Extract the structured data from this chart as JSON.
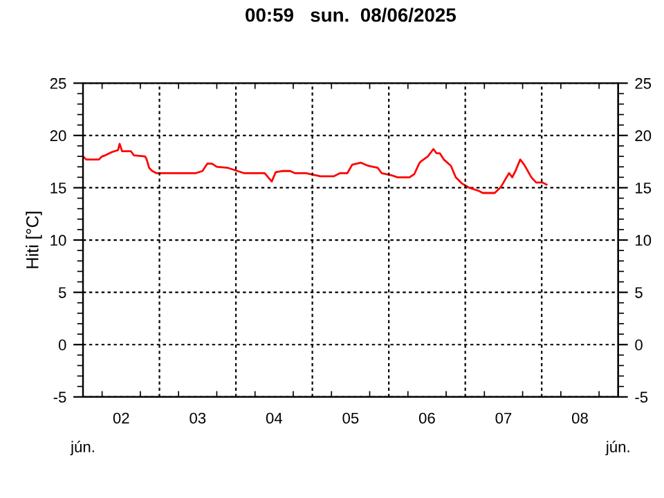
{
  "chart_data": {
    "type": "line",
    "title": "00:59   sun.  08/06/2025",
    "ylabel": "Hiti [°C]",
    "annotations": [
      "jún.",
      "jún."
    ],
    "series": [
      {
        "color": "#ff0000",
        "x": [
          "2025-06-02T00:00",
          "2025-06-02T01:00",
          "2025-06-02T05:00",
          "2025-06-02T06:00",
          "2025-06-02T07:00",
          "2025-06-02T09:00",
          "2025-06-02T11:00",
          "2025-06-02T11:30",
          "2025-06-02T12:15",
          "2025-06-02T15:00",
          "2025-06-02T16:00",
          "2025-06-02T19:30",
          "2025-06-02T20:00",
          "2025-06-02T20:45",
          "2025-06-02T21:45",
          "2025-06-02T23:00",
          "2025-06-03T11:30",
          "2025-06-03T13:30",
          "2025-06-03T15:00",
          "2025-06-03T16:30",
          "2025-06-03T18:00",
          "2025-06-03T21:30",
          "2025-06-03T23:30",
          "2025-06-04T02:30",
          "2025-06-04T09:00",
          "2025-06-04T11:15",
          "2025-06-04T12:30",
          "2025-06-04T14:45",
          "2025-06-04T17:00",
          "2025-06-04T18:30",
          "2025-06-04T22:00",
          "2025-06-04T23:30",
          "2025-06-05T02:30",
          "2025-06-05T06:45",
          "2025-06-05T08:45",
          "2025-06-05T11:00",
          "2025-06-05T12:30",
          "2025-06-05T15:15",
          "2025-06-05T17:30",
          "2025-06-05T20:30",
          "2025-06-05T21:45",
          "2025-06-06T00:45",
          "2025-06-06T02:45",
          "2025-06-06T06:30",
          "2025-06-06T08:00",
          "2025-06-06T09:30",
          "2025-06-06T10:00",
          "2025-06-06T12:15",
          "2025-06-06T14:00",
          "2025-06-06T15:00",
          "2025-06-06T16:00",
          "2025-06-06T17:15",
          "2025-06-06T19:30",
          "2025-06-06T21:00",
          "2025-06-06T23:00",
          "2025-06-07T01:15",
          "2025-06-07T04:15",
          "2025-06-07T05:30",
          "2025-06-07T09:15",
          "2025-06-07T11:15",
          "2025-06-07T12:45",
          "2025-06-07T13:45",
          "2025-06-07T14:45",
          "2025-06-07T15:45",
          "2025-06-07T17:15",
          "2025-06-07T18:30",
          "2025-06-07T20:45",
          "2025-06-07T22:15",
          "2025-06-08T00:15",
          "2025-06-08T01:30"
        ],
        "values": [
          18.0,
          17.7,
          17.7,
          18.0,
          18.1,
          18.4,
          18.6,
          19.2,
          18.5,
          18.5,
          18.1,
          18.0,
          17.7,
          16.9,
          16.6,
          16.4,
          16.4,
          16.6,
          17.3,
          17.3,
          17.0,
          16.9,
          16.7,
          16.4,
          16.4,
          15.6,
          16.5,
          16.6,
          16.6,
          16.4,
          16.4,
          16.3,
          16.1,
          16.1,
          16.4,
          16.4,
          17.2,
          17.4,
          17.1,
          16.9,
          16.4,
          16.2,
          16.0,
          16.0,
          16.3,
          17.3,
          17.5,
          18.0,
          18.7,
          18.3,
          18.3,
          17.7,
          17.1,
          16.0,
          15.4,
          15.0,
          14.7,
          14.5,
          14.5,
          15.1,
          15.9,
          16.4,
          16.0,
          16.6,
          17.7,
          17.2,
          16.0,
          15.5,
          15.5,
          15.3
        ]
      }
    ],
    "xlim": [
      "2025-06-02T00:00",
      "2025-06-09T00:00"
    ],
    "xticks": [
      {
        "value": "2025-06-02T12:00",
        "label": "02"
      },
      {
        "value": "2025-06-03T00:00",
        "label": null
      },
      {
        "value": "2025-06-03T12:00",
        "label": "03"
      },
      {
        "value": "2025-06-04T00:00",
        "label": null
      },
      {
        "value": "2025-06-04T12:00",
        "label": "04"
      },
      {
        "value": "2025-06-05T00:00",
        "label": null
      },
      {
        "value": "2025-06-05T12:00",
        "label": "05"
      },
      {
        "value": "2025-06-06T00:00",
        "label": null
      },
      {
        "value": "2025-06-06T12:00",
        "label": "06"
      },
      {
        "value": "2025-06-07T00:00",
        "label": null
      },
      {
        "value": "2025-06-07T12:00",
        "label": "07"
      },
      {
        "value": "2025-06-08T00:00",
        "label": null
      },
      {
        "value": "2025-06-08T12:00",
        "label": "08"
      }
    ],
    "ylim": [
      -5,
      25
    ],
    "yticks": [
      -5,
      0,
      5,
      10,
      15,
      20,
      25
    ],
    "y2lim": [
      -5,
      25
    ],
    "y2ticks": [
      -5,
      0,
      5,
      10,
      15,
      20,
      25
    ],
    "grid": true,
    "line_style": "solid",
    "marker": "none",
    "legend": false
  }
}
